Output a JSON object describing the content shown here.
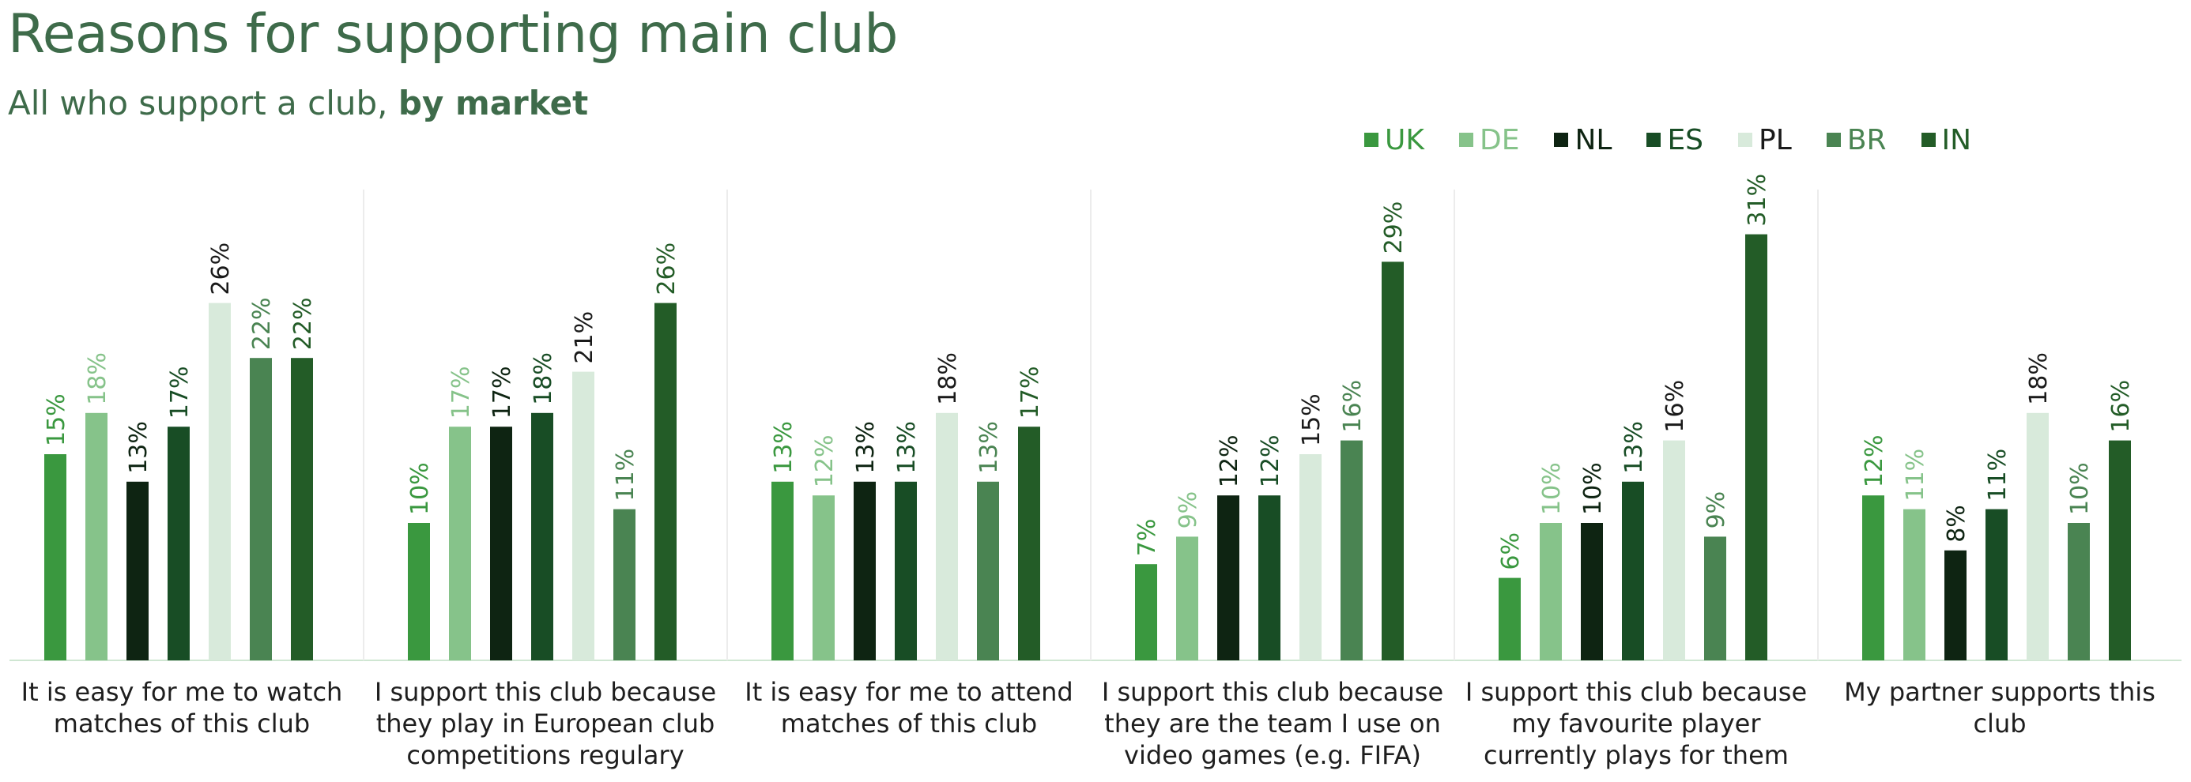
{
  "title": "Reasons for supporting main club",
  "subtitle": {
    "prefix": "All who support a club,",
    "emphasis": "by market"
  },
  "chart_data": {
    "type": "bar",
    "title": "Reasons for supporting main club",
    "subtitle": "All who support a club, by market",
    "categories": [
      "It is easy for me to watch matches of this club",
      "I support this club because they play in European club competitions regulary",
      "It is easy for me to attend matches of this club",
      "I support this club because they are the team I use on video games (e.g. FIFA)",
      "I support this club because my favourite player currently plays for them",
      "My partner supports this club"
    ],
    "series": [
      {
        "name": "UK",
        "color": "#3a983f",
        "label_color": "#3a983f",
        "values": [
          15,
          10,
          13,
          7,
          6,
          12
        ]
      },
      {
        "name": "DE",
        "color": "#86c38a",
        "label_color": "#86c38a",
        "values": [
          18,
          17,
          12,
          9,
          10,
          11
        ]
      },
      {
        "name": "NL",
        "color": "#0e2412",
        "label_color": "#0e2412",
        "values": [
          13,
          17,
          13,
          12,
          10,
          8
        ]
      },
      {
        "name": "ES",
        "color": "#184d25",
        "label_color": "#184d25",
        "values": [
          17,
          18,
          13,
          12,
          13,
          11
        ]
      },
      {
        "name": "PL",
        "color": "#d8eadb",
        "label_color": "#1a1a1a",
        "values": [
          26,
          21,
          18,
          15,
          16,
          18
        ]
      },
      {
        "name": "BR",
        "color": "#4a8452",
        "label_color": "#4a8452",
        "values": [
          22,
          11,
          13,
          16,
          9,
          10
        ]
      },
      {
        "name": "IN",
        "color": "#235c27",
        "label_color": "#235c27",
        "values": [
          22,
          26,
          17,
          29,
          31,
          16
        ]
      }
    ],
    "value_suffix": "%",
    "ylim": [
      0,
      33
    ],
    "data_labels": true,
    "legend_position": "top-right",
    "grid": false
  }
}
